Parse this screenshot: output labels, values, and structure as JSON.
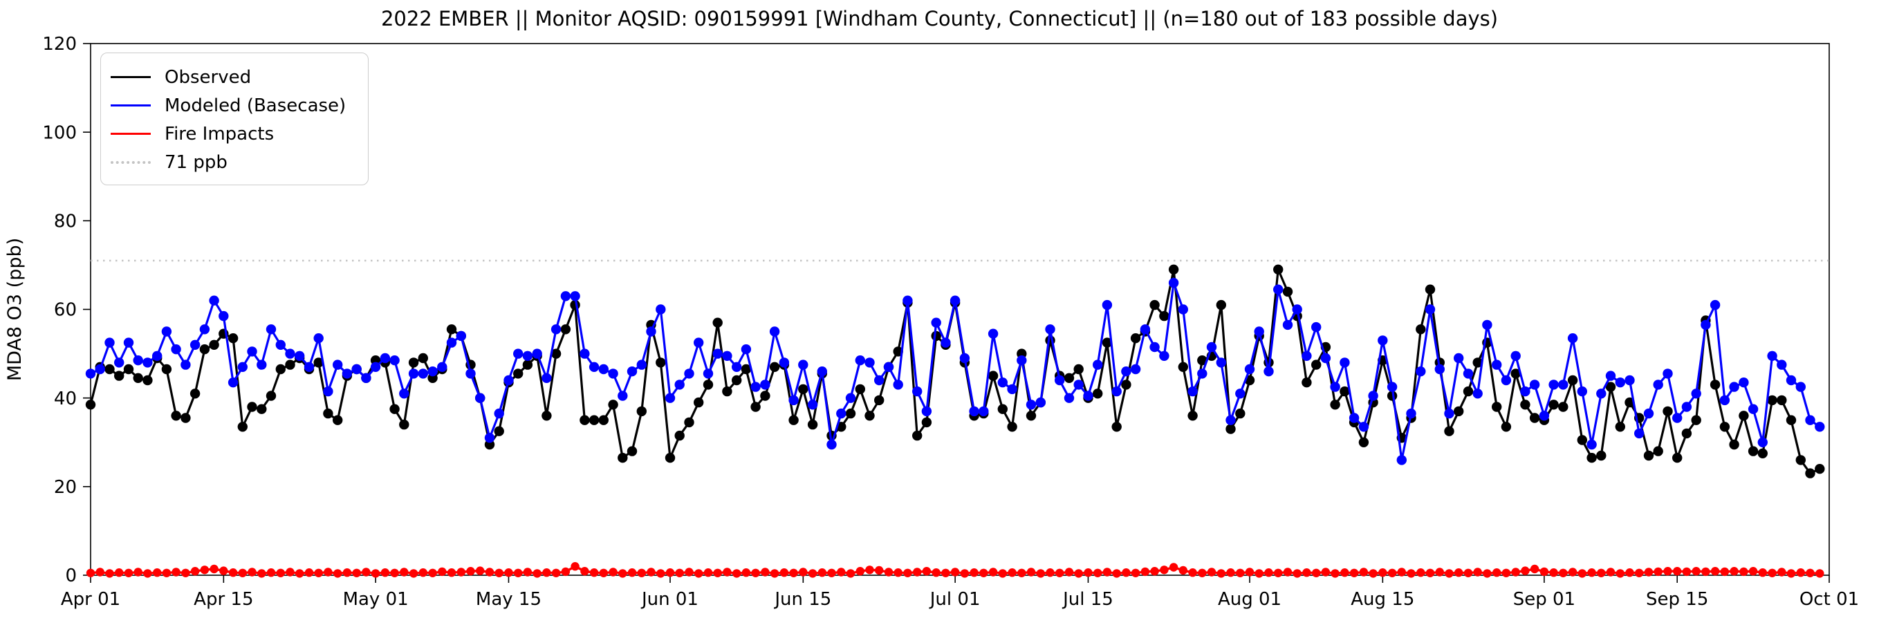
{
  "title": "2022 EMBER || Monitor AQSID: 090159991 [Windham County, Connecticut] || (n=180 out of 183 possible days)",
  "legend": {
    "entries": [
      {
        "label": "Observed",
        "color": "#000000",
        "style": "solid"
      },
      {
        "label": "Modeled (Basecase)",
        "color": "#0000ff",
        "style": "solid"
      },
      {
        "label": "Fire Impacts",
        "color": "#ff0000",
        "style": "solid"
      },
      {
        "label": "71 ppb",
        "color": "#c4c4c4",
        "style": "dotted"
      }
    ]
  },
  "axes": {
    "ylabel": "MDA8 O3 (ppb)",
    "ylim": [
      0,
      120
    ],
    "yticks": [
      0,
      20,
      40,
      60,
      80,
      100,
      120
    ],
    "xticks": [
      {
        "label": "Apr 01",
        "day": 0
      },
      {
        "label": "Apr 15",
        "day": 14
      },
      {
        "label": "May 01",
        "day": 30
      },
      {
        "label": "May 15",
        "day": 44
      },
      {
        "label": "Jun 01",
        "day": 61
      },
      {
        "label": "Jun 15",
        "day": 75
      },
      {
        "label": "Jul 01",
        "day": 91
      },
      {
        "label": "Jul 15",
        "day": 105
      },
      {
        "label": "Aug 01",
        "day": 122
      },
      {
        "label": "Aug 15",
        "day": 136
      },
      {
        "label": "Sep 01",
        "day": 153
      },
      {
        "label": "Sep 15",
        "day": 167
      },
      {
        "label": "Oct 01",
        "day": 183
      }
    ]
  },
  "threshold": {
    "value": 71,
    "label": "71 ppb",
    "color": "#c4c4c4"
  },
  "chart_data": {
    "type": "line",
    "title": "2022 EMBER || Monitor AQSID: 090159991 [Windham County, Connecticut] || (n=180 out of 183 possible days)",
    "xlabel": "",
    "ylabel": "MDA8 O3 (ppb)",
    "ylim": [
      0,
      120
    ],
    "x_start": "Apr 01",
    "x_end": "Oct 01",
    "n_days": 183,
    "legend_position": "upper left",
    "grid": false,
    "threshold_ppb": 71,
    "series": [
      {
        "name": "Observed",
        "color": "#000000",
        "marker": "circle",
        "values": [
          38.5,
          47,
          46.5,
          45,
          46.5,
          44.5,
          44,
          49,
          46.5,
          36,
          35.5,
          41,
          51,
          52,
          54.5,
          53.5,
          33.5,
          38,
          37.5,
          40.5,
          46.5,
          47.5,
          49,
          46.5,
          48,
          36.5,
          35,
          45,
          46.5,
          44.5,
          48.5,
          48,
          37.5,
          34,
          48,
          49,
          44.5,
          46.5,
          55.5,
          54,
          47.5,
          40,
          29.5,
          32.5,
          43.5,
          45.5,
          47.5,
          49.5,
          36,
          50,
          55.5,
          61,
          35,
          35,
          35,
          38.5,
          26.5,
          28,
          37,
          56.5,
          48,
          26.5,
          31.5,
          34.5,
          39,
          43,
          57,
          41.5,
          44,
          46.5,
          38,
          40.5,
          47,
          47.5,
          35,
          42,
          34,
          45.5,
          31.5,
          33.5,
          36.5,
          42,
          36,
          39.5,
          47,
          50.5,
          61.5,
          31.5,
          34.5,
          54,
          52,
          61.5,
          48,
          36,
          36.5,
          45,
          37.5,
          33.5,
          50,
          36,
          39,
          53,
          45,
          44.5,
          46.5,
          40,
          41,
          52.5,
          33.5,
          43,
          53.5,
          55,
          61,
          58.5,
          69,
          47,
          36,
          48.5,
          49.5,
          61,
          33,
          36.5,
          44,
          54,
          48,
          69,
          64,
          58.5,
          43.5,
          47.5,
          51.5,
          38.5,
          41.5,
          34.5,
          30,
          39,
          48.5,
          40.5,
          31,
          35.5,
          55.5,
          64.5,
          48,
          32.5,
          37,
          41.5,
          48,
          52.5,
          38,
          33.5,
          45.5,
          38.5,
          35.5,
          35,
          38.5,
          38,
          44,
          30.5,
          26.5,
          27,
          42.5,
          33.5,
          39,
          35.5,
          27,
          28,
          37,
          26.5,
          32,
          35,
          57.5,
          43,
          33.5,
          29.5,
          36,
          28,
          27.5,
          39.5,
          39.5,
          35,
          26,
          23,
          24
        ]
      },
      {
        "name": "Modeled (Basecase)",
        "color": "#0000ff",
        "marker": "circle",
        "values": [
          45.5,
          46.5,
          52.5,
          48,
          52.5,
          48.5,
          48,
          49.5,
          55,
          51,
          47.5,
          52,
          55.5,
          62,
          58.5,
          43.5,
          47,
          50.5,
          47.5,
          55.5,
          52,
          50,
          49.5,
          47,
          53.5,
          41.5,
          47.5,
          45.5,
          46.5,
          44.5,
          47,
          49,
          48.5,
          41,
          45.5,
          45.5,
          46,
          47,
          52.5,
          54,
          45.5,
          40,
          31,
          36.5,
          44,
          50,
          49.5,
          50,
          44.5,
          55.5,
          63,
          63,
          50,
          47,
          46.5,
          45.5,
          40.5,
          46,
          47.5,
          55,
          60,
          40,
          43,
          45.5,
          52.5,
          45.5,
          50,
          49.5,
          47,
          51,
          42.5,
          43,
          55,
          48,
          39.5,
          47.5,
          38.5,
          46,
          29.5,
          36.5,
          40,
          48.5,
          48,
          44,
          47,
          43,
          62,
          41.5,
          37,
          57,
          52.5,
          62,
          49,
          37,
          37,
          54.5,
          43.5,
          42,
          48.5,
          38.5,
          39,
          55.5,
          44,
          40,
          43,
          40.5,
          47.5,
          61,
          41.5,
          46,
          46.5,
          55.5,
          51.5,
          49.5,
          66,
          60,
          41.5,
          45.5,
          51.5,
          48,
          35,
          41,
          46.5,
          55,
          46,
          64.5,
          56.5,
          60,
          49.5,
          56,
          49,
          42.5,
          48,
          35.5,
          33.5,
          40.5,
          53,
          42.5,
          26,
          36.5,
          46,
          60,
          46.5,
          36.5,
          49,
          45.5,
          41,
          56.5,
          47.5,
          44,
          49.5,
          41.5,
          43,
          36,
          43,
          43,
          53.5,
          41.5,
          29.5,
          41,
          45,
          43.5,
          44,
          32,
          36.5,
          43,
          45.5,
          35.5,
          38,
          41,
          56.5,
          61,
          39.5,
          42.5,
          43.5,
          37.5,
          30,
          49.5,
          47.5,
          44,
          42.5,
          35,
          33.5
        ]
      },
      {
        "name": "Fire Impacts",
        "color": "#ff0000",
        "marker": "circle",
        "values": [
          0.5,
          0.7,
          0.4,
          0.6,
          0.5,
          0.7,
          0.4,
          0.6,
          0.5,
          0.7,
          0.5,
          0.9,
          1.2,
          1.4,
          1.0,
          0.6,
          0.5,
          0.7,
          0.4,
          0.6,
          0.5,
          0.7,
          0.4,
          0.6,
          0.5,
          0.7,
          0.4,
          0.6,
          0.5,
          0.7,
          0.4,
          0.6,
          0.5,
          0.7,
          0.4,
          0.6,
          0.5,
          0.8,
          0.6,
          0.7,
          0.9,
          1.0,
          0.7,
          0.5,
          0.6,
          0.5,
          0.7,
          0.4,
          0.6,
          0.5,
          0.8,
          2.0,
          0.9,
          0.6,
          0.5,
          0.7,
          0.4,
          0.6,
          0.5,
          0.7,
          0.4,
          0.6,
          0.5,
          0.7,
          0.4,
          0.6,
          0.5,
          0.7,
          0.4,
          0.6,
          0.5,
          0.7,
          0.4,
          0.6,
          0.5,
          0.7,
          0.4,
          0.6,
          0.5,
          0.7,
          0.4,
          0.9,
          1.2,
          1.1,
          0.7,
          0.6,
          0.5,
          0.7,
          0.9,
          0.6,
          0.5,
          0.7,
          0.4,
          0.6,
          0.5,
          0.7,
          0.4,
          0.6,
          0.5,
          0.7,
          0.4,
          0.6,
          0.5,
          0.7,
          0.4,
          0.6,
          0.5,
          0.7,
          0.4,
          0.6,
          0.5,
          0.8,
          0.9,
          1.2,
          1.8,
          1.1,
          0.6,
          0.5,
          0.7,
          0.4,
          0.6,
          0.5,
          0.7,
          0.4,
          0.6,
          0.5,
          0.7,
          0.4,
          0.6,
          0.5,
          0.7,
          0.4,
          0.6,
          0.5,
          0.7,
          0.4,
          0.6,
          0.5,
          0.7,
          0.4,
          0.6,
          0.5,
          0.7,
          0.4,
          0.6,
          0.5,
          0.7,
          0.4,
          0.6,
          0.5,
          0.7,
          1.0,
          1.4,
          0.8,
          0.6,
          0.5,
          0.7,
          0.4,
          0.6,
          0.5,
          0.7,
          0.4,
          0.6,
          0.5,
          0.7,
          0.8,
          0.9,
          0.9,
          0.8,
          0.9,
          0.8,
          0.9,
          0.8,
          0.9,
          0.8,
          0.9,
          0.6,
          0.5,
          0.7,
          0.4,
          0.6,
          0.5,
          0.4
        ]
      }
    ]
  }
}
